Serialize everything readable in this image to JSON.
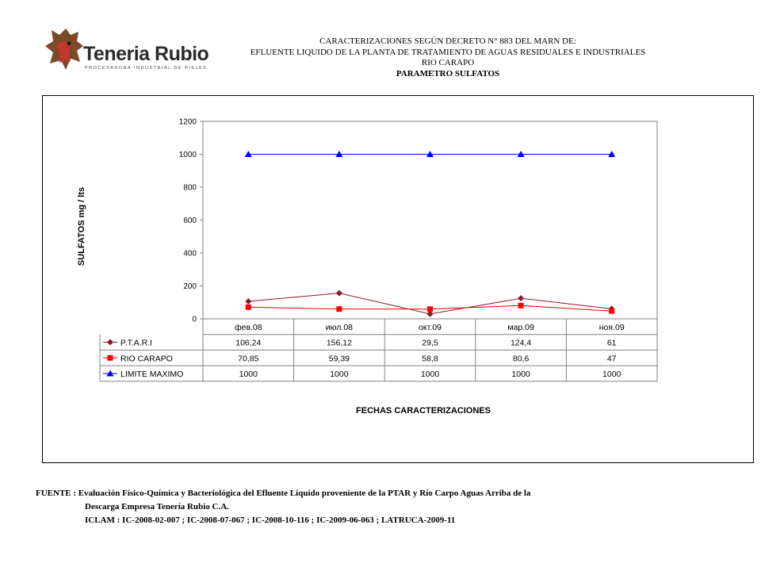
{
  "logo": {
    "icon": "leather-hide-icon",
    "name": "Teneria Rubio",
    "tagline": "PROCESADORA INDUSTRIAL DE PIELES",
    "colors": {
      "hide": "#7a4a2a",
      "accent": "#c0392b"
    }
  },
  "header": {
    "line1": "CARACTERIZACIONES SEGÚN DECRETO N° 883 DEL MARN DE:",
    "line2": "EFLUENTE LIQUIDO DE LA PLANTA DE TRATAMIENTO DE AGUAS RESIDUALES E INDUSTRIALES",
    "line3": "RIO CARAPO",
    "line4": "PARAMETRO   SULFATOS"
  },
  "chart_data": {
    "type": "line",
    "title": "",
    "xlabel": "FECHAS CARACTERIZACIONES",
    "ylabel": "SULFATOS  mg  / lts",
    "ylim": [
      0,
      1200
    ],
    "yticks": [
      0,
      200,
      400,
      600,
      800,
      1000,
      1200
    ],
    "grid": false,
    "legend": "data-table-below",
    "categories": [
      "фев.08",
      "июл.08",
      "окт.09",
      "мар.09",
      "ноя.09"
    ],
    "series": [
      {
        "name": "P.T.A.R.I",
        "values": [
          106.24,
          156.12,
          29.5,
          124.4,
          61
        ],
        "labels": [
          "106,24",
          "156,12",
          "29,5",
          "124,4",
          "61"
        ],
        "color": "#8b1a2b",
        "marker": "diamond"
      },
      {
        "name": "RIO CARAPO",
        "values": [
          70.85,
          59.39,
          58.8,
          80.6,
          47
        ],
        "labels": [
          "70,85",
          "59,39",
          "58,8",
          "80,6",
          "47"
        ],
        "color": "#ff0000",
        "marker": "square"
      },
      {
        "name": "LIMITE MAXIMO",
        "values": [
          1000,
          1000,
          1000,
          1000,
          1000
        ],
        "labels": [
          "1000",
          "1000",
          "1000",
          "1000",
          "1000"
        ],
        "color": "#0000ff",
        "marker": "triangle"
      }
    ]
  },
  "footer": {
    "line1": "FUENTE : Evaluación Físico-Química y Bacteriológica del Efluente Líquido proveniente de la PTAR y Río Carpo Aguas Arriba de la",
    "line2": "Descarga Empresa Tenería Rubio C.A.",
    "line3": "ICLAM   :   IC-2008-02-007 ; IC-2008-07-067  ; IC-2008-10-116  ; IC-2009-06-063 ; LATRUCA-2009-11"
  }
}
